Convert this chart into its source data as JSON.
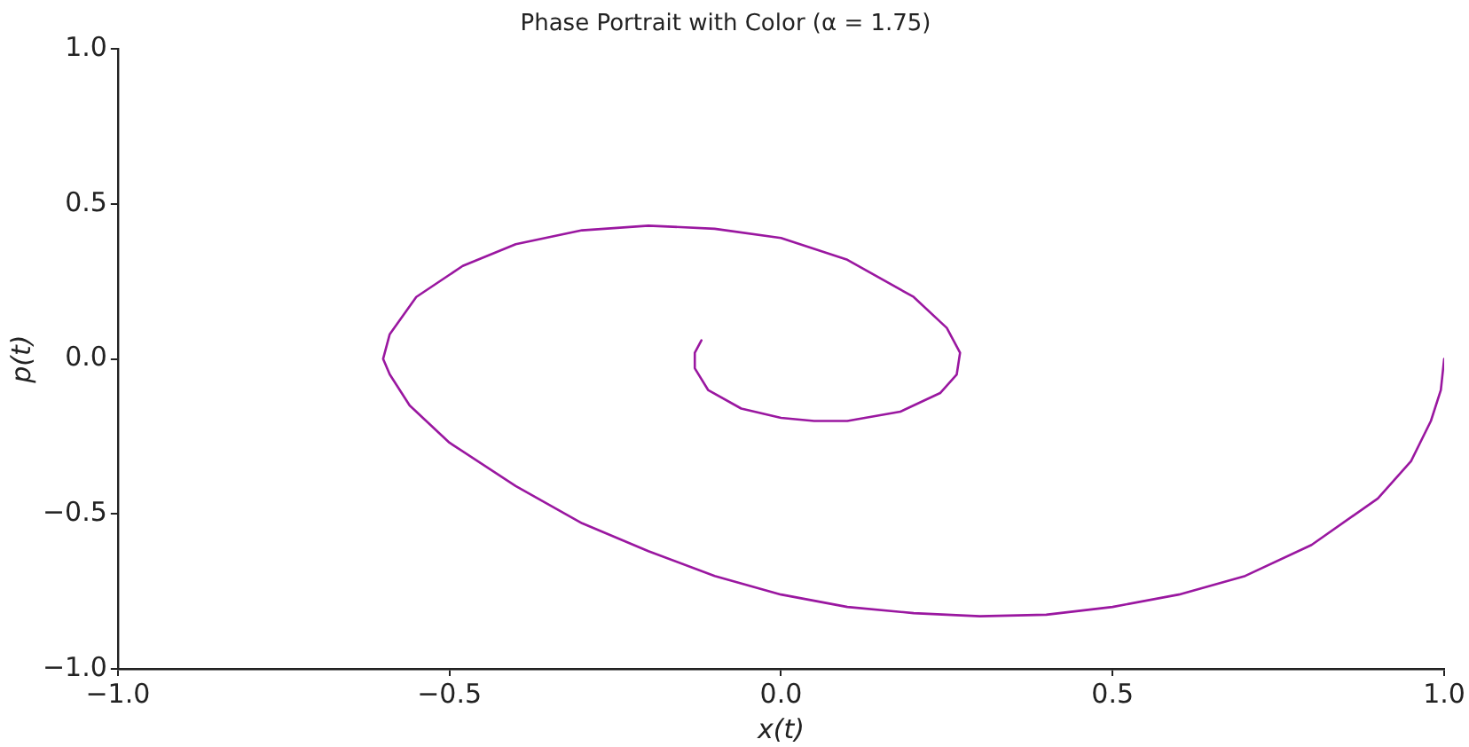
{
  "chart_data": {
    "type": "line",
    "title": "Phase Portrait with Color (α = 1.75)",
    "xlabel": "x(t)",
    "ylabel": "p(t)",
    "series": [
      {
        "x": [
          1,
          0.995,
          0.98,
          0.95,
          0.9,
          0.8,
          0.7,
          0.6,
          0.5,
          0.4,
          0.3,
          0.2,
          0.1,
          0,
          -0.1,
          -0.2,
          -0.3,
          -0.4,
          -0.5,
          -0.56,
          -0.59,
          -0.6,
          -0.59,
          -0.55,
          -0.48,
          -0.4,
          -0.3,
          -0.2,
          -0.1,
          0,
          0.1,
          0.2,
          0.25,
          0.27,
          0.265,
          0.24,
          0.18,
          0.1,
          0.05,
          0,
          -0.06,
          -0.11,
          -0.13,
          -0.13,
          -0.12
        ],
        "values": [
          0,
          -0.1,
          -0.2,
          -0.33,
          -0.45,
          -0.6,
          -0.7,
          -0.76,
          -0.8,
          -0.825,
          -0.83,
          -0.82,
          -0.8,
          -0.76,
          -0.7,
          -0.62,
          -0.53,
          -0.41,
          -0.27,
          -0.15,
          -0.05,
          0,
          0.08,
          0.2,
          0.3,
          0.37,
          0.415,
          0.43,
          0.42,
          0.39,
          0.32,
          0.2,
          0.1,
          0.02,
          -0.05,
          -0.11,
          -0.17,
          -0.2,
          -0.2,
          -0.19,
          -0.16,
          -0.1,
          -0.03,
          0.02,
          0.06
        ],
        "color": "#9a17a0"
      }
    ],
    "xlim": [
      -1,
      1
    ],
    "ylim": [
      -1,
      1
    ],
    "xticks": [
      {
        "value": -1,
        "label": "−1.0"
      },
      {
        "value": -0.5,
        "label": "−0.5"
      },
      {
        "value": 0,
        "label": "0.0"
      },
      {
        "value": 0.5,
        "label": "0.5"
      },
      {
        "value": 1,
        "label": "1.0"
      }
    ],
    "yticks": [
      {
        "value": -1,
        "label": "−1.0"
      },
      {
        "value": -0.5,
        "label": "−0.5"
      },
      {
        "value": 0,
        "label": "0.0"
      },
      {
        "value": 0.5,
        "label": "0.5"
      },
      {
        "value": 1,
        "label": "1.0"
      }
    ],
    "grid": false,
    "legend": false,
    "marker": "none"
  }
}
